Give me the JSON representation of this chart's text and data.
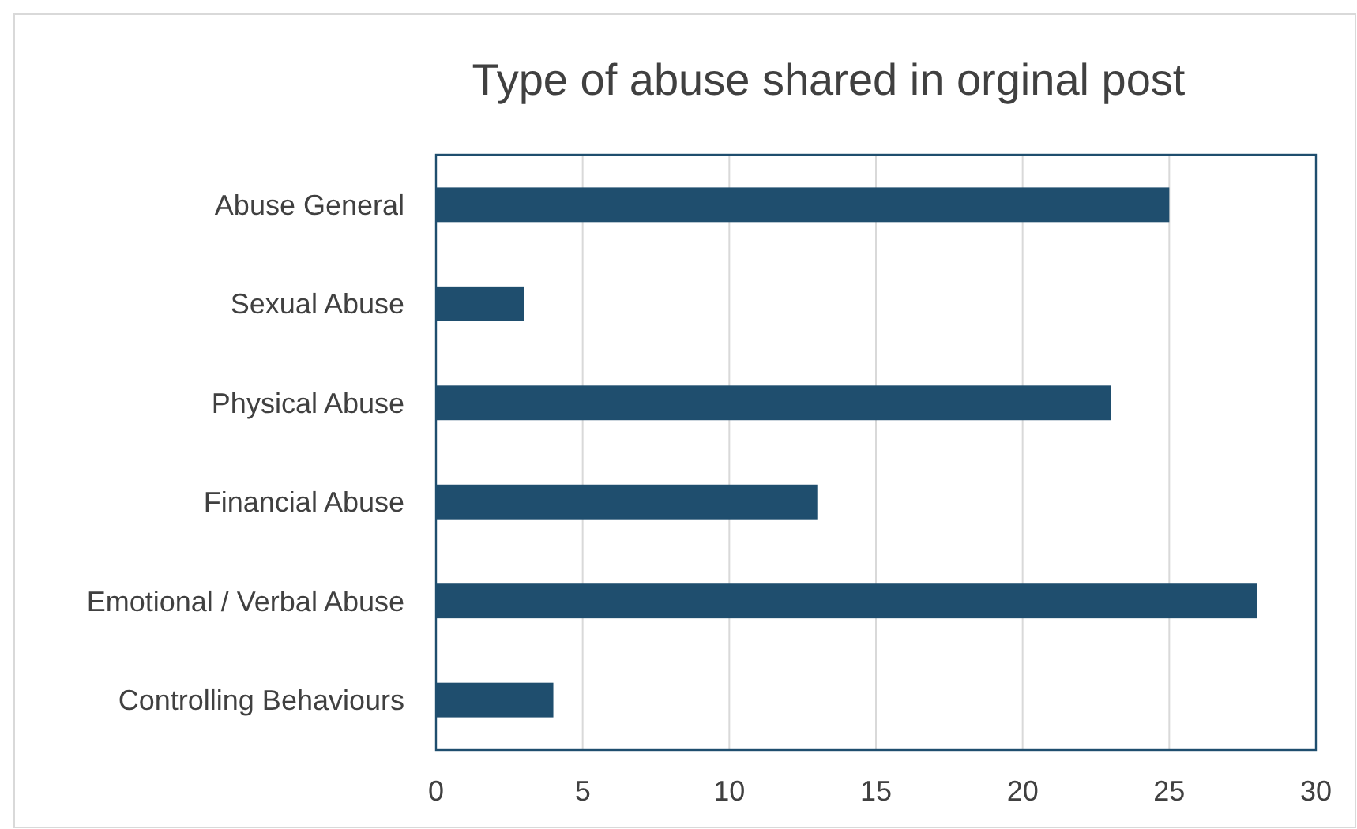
{
  "chart_data": {
    "type": "bar",
    "orientation": "horizontal",
    "title": "Type of abuse shared in orginal post",
    "categories": [
      "Abuse General",
      "Sexual Abuse",
      "Physical Abuse",
      "Financial Abuse",
      "Emotional / Verbal Abuse",
      "Controlling Behaviours"
    ],
    "values": [
      25,
      3,
      23,
      13,
      28,
      4
    ],
    "color": "#1f4e6e",
    "xlim": [
      0,
      30
    ],
    "xticks": [
      0,
      5,
      10,
      15,
      20,
      25,
      30
    ],
    "grid": "x"
  }
}
